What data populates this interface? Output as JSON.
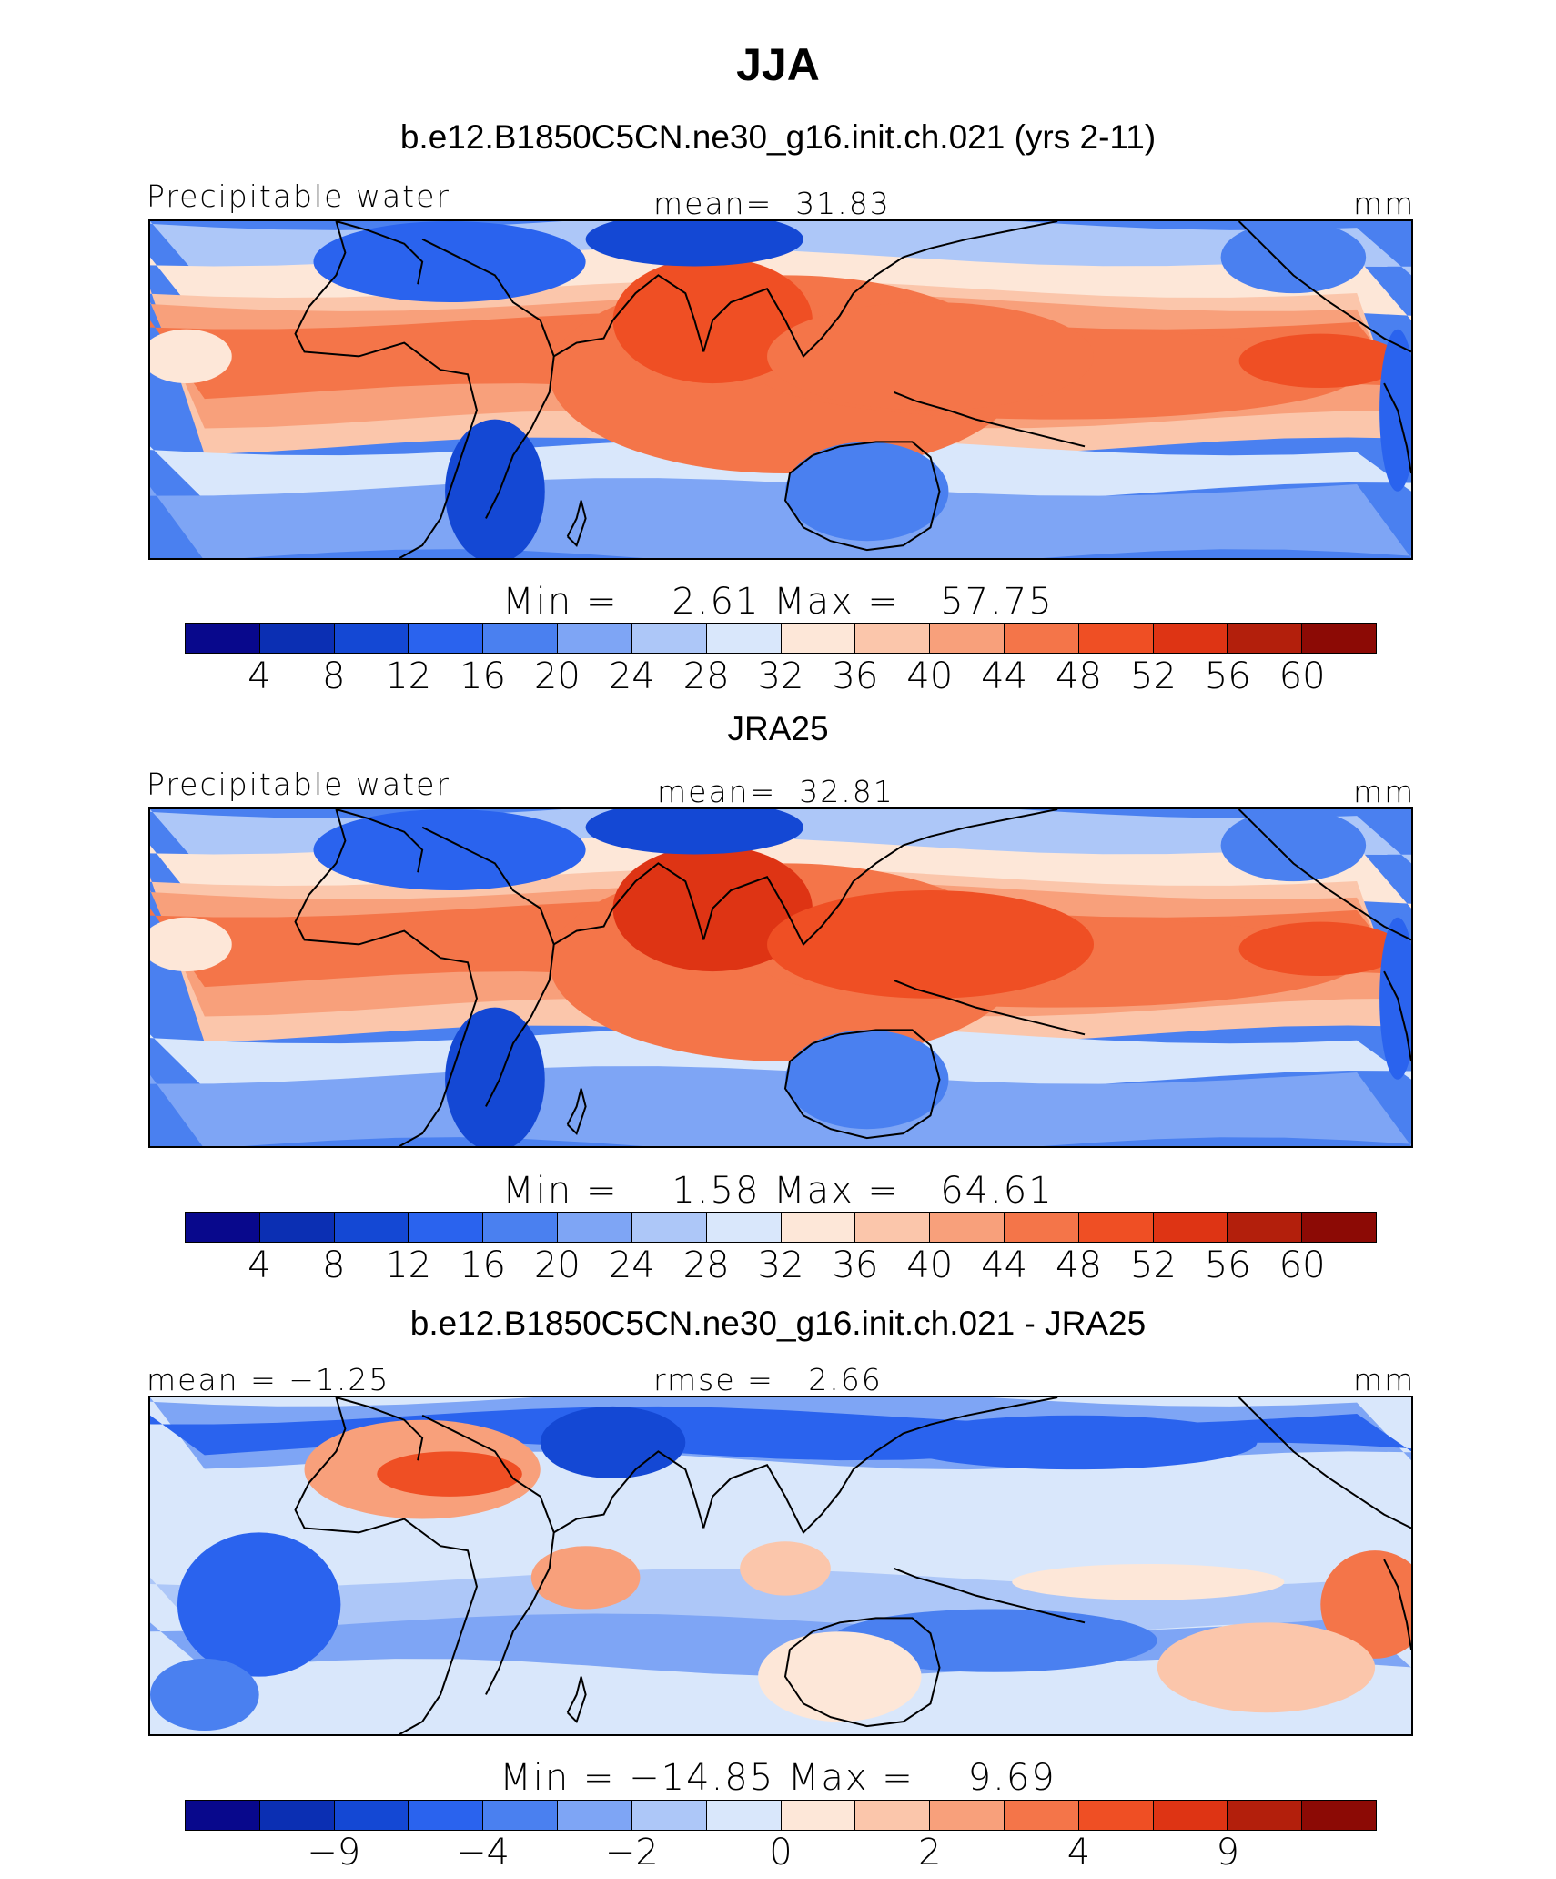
{
  "title": "JJA",
  "colors": [
    "#08088c",
    "#0b2fb3",
    "#1448d4",
    "#2a63ee",
    "#4a80f0",
    "#7ea5f5",
    "#adc7f8",
    "#d9e7fb",
    "#fde7d8",
    "#fbc6ab",
    "#f8a07b",
    "#f47549",
    "#ef4f24",
    "#de3414",
    "#b31f0c",
    "#8c0a05"
  ],
  "panels": [
    {
      "title": "b.e12.B1850C5CN.ne30_g16.init.ch.021 (yrs 2-11)",
      "left_label": "Precipitable water",
      "center_label": "mean=  31.83",
      "right_label": "mm",
      "minmax": "Min =    2.61 Max =   57.75",
      "tick_labels": [
        "4",
        "8",
        "12",
        "16",
        "20",
        "24",
        "28",
        "32",
        "36",
        "40",
        "44",
        "48",
        "52",
        "56",
        "60"
      ]
    },
    {
      "title": "JRA25",
      "left_label": "Precipitable water",
      "center_label": "mean=  32.81",
      "right_label": "mm",
      "minmax": "Min =    1.58 Max =   64.61",
      "tick_labels": [
        "4",
        "8",
        "12",
        "16",
        "20",
        "24",
        "28",
        "32",
        "36",
        "40",
        "44",
        "48",
        "52",
        "56",
        "60"
      ]
    },
    {
      "title": "b.e12.B1850C5CN.ne30_g16.init.ch.021 - JRA25",
      "left_label": "mean = −1.25",
      "center_label": "rmse =   2.66",
      "right_label": "mm",
      "minmax": "Min = −14.85 Max =    9.69",
      "tick_labels": [
        "−9",
        "−4",
        "−2",
        "0",
        "2",
        "4",
        "9"
      ]
    }
  ]
}
